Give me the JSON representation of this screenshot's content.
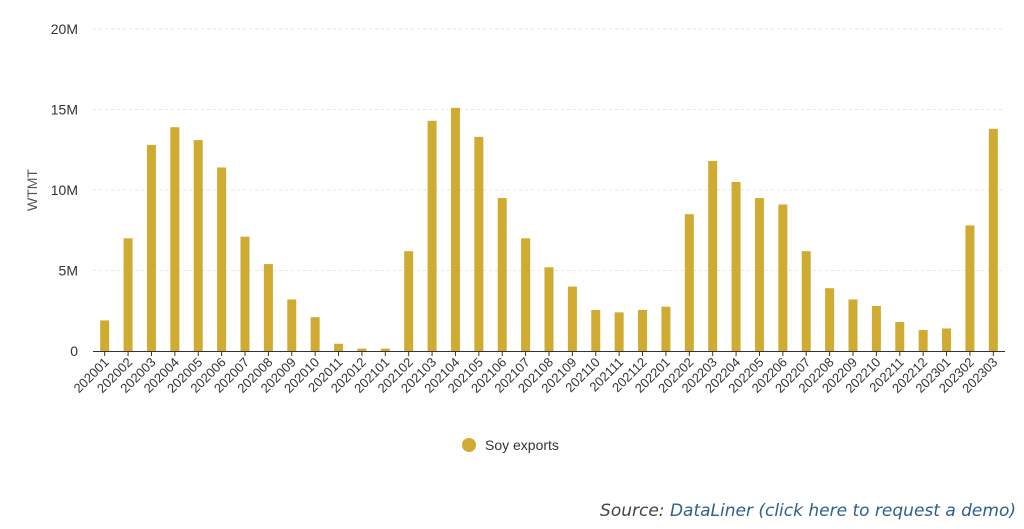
{
  "chart_data": {
    "type": "bar",
    "title": "",
    "xlabel": "",
    "ylabel": "WTMT",
    "ylim": [
      0,
      20000000
    ],
    "yticks": [
      0,
      5000000,
      10000000,
      15000000,
      20000000
    ],
    "ytick_labels": [
      "0",
      "5M",
      "10M",
      "15M",
      "20M"
    ],
    "grid": "horizontal dashed",
    "legend_position": "bottom-center",
    "colors": {
      "bar": "#cfab32",
      "grid": "#e6e6e6",
      "axis": "#333333"
    },
    "categories": [
      "202001",
      "202002",
      "202003",
      "202004",
      "202005",
      "202006",
      "202007",
      "202008",
      "202009",
      "202010",
      "202011",
      "202012",
      "202101",
      "202102",
      "202103",
      "202104",
      "202105",
      "202106",
      "202107",
      "202108",
      "202109",
      "202110",
      "202111",
      "202112",
      "202201",
      "202202",
      "202203",
      "202204",
      "202205",
      "202206",
      "202207",
      "202208",
      "202209",
      "202210",
      "202211",
      "202212",
      "202301",
      "202302",
      "202303"
    ],
    "series": [
      {
        "name": "Soy exports",
        "values": [
          1900000,
          7000000,
          12800000,
          13900000,
          13100000,
          11400000,
          7100000,
          5400000,
          3200000,
          2100000,
          450000,
          150000,
          150000,
          6200000,
          14300000,
          15100000,
          13300000,
          9500000,
          7000000,
          5200000,
          4000000,
          2550000,
          2400000,
          2550000,
          2750000,
          8500000,
          11800000,
          10500000,
          9500000,
          9100000,
          6200000,
          3900000,
          3200000,
          2800000,
          1800000,
          1300000,
          1400000,
          7800000,
          13800000
        ]
      }
    ]
  },
  "source": {
    "prefix": "Source:",
    "link_text": "DataLiner (click here to request a demo)"
  }
}
